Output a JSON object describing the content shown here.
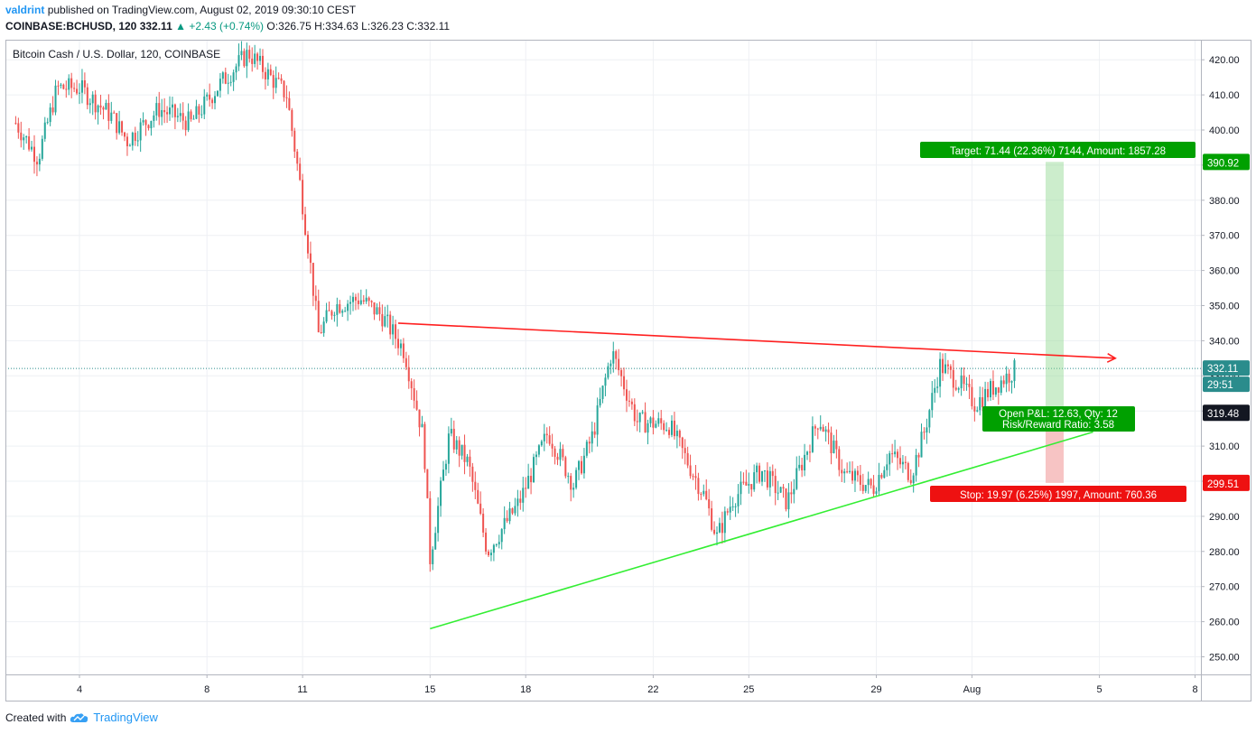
{
  "header": {
    "author": "valdrint",
    "published_text": "published on TradingView.com, August 02, 2019 09:30:10 CEST",
    "symbol": "COINBASE:BCHUSD, 120",
    "last": "332.11",
    "change": "+2.43 (+0.74%)",
    "open_label": "O:",
    "open": "326.75",
    "high_label": "H:",
    "high": "334.63",
    "low_label": "L:",
    "low": "326.23",
    "close_label": "C:",
    "close": "332.11"
  },
  "footer": {
    "created_with": "Created with",
    "brand": "TradingView"
  },
  "colors": {
    "up": "#26a69a",
    "down": "#ef5350",
    "grid": "#eef0f4",
    "resistance": "#ff2020",
    "support": "#33ee33",
    "target": "#00a000",
    "stop": "#ee1111",
    "current": "#2a8c8c",
    "neutral": "#131722"
  },
  "chart_data": {
    "type": "candlestick",
    "title": "Bitcoin Cash / U.S. Dollar, 120, COINBASE",
    "y_ticks": [
      "250.00",
      "260.00",
      "270.00",
      "280.00",
      "290.00",
      "300.00",
      "310.00",
      "320.00",
      "330.00",
      "340.00",
      "350.00",
      "360.00",
      "370.00",
      "380.00",
      "390.00",
      "400.00",
      "410.00",
      "420.00"
    ],
    "x_ticks": [
      "4",
      "8",
      "11",
      "15",
      "18",
      "22",
      "25",
      "29",
      "Aug",
      "5",
      "8"
    ],
    "ylim": [
      246.9,
      426
    ],
    "grid": true,
    "price_path": [
      {
        "day": 2.0,
        "price": 402
      },
      {
        "day": 2.7,
        "price": 392
      },
      {
        "day": 3.3,
        "price": 412
      },
      {
        "day": 4.0,
        "price": 412
      },
      {
        "day": 5.0,
        "price": 404
      },
      {
        "day": 5.5,
        "price": 397
      },
      {
        "day": 6.5,
        "price": 406
      },
      {
        "day": 7.5,
        "price": 402
      },
      {
        "day": 8.4,
        "price": 413
      },
      {
        "day": 9.3,
        "price": 422
      },
      {
        "day": 10.5,
        "price": 410
      },
      {
        "day": 10.9,
        "price": 386
      },
      {
        "day": 11.2,
        "price": 365
      },
      {
        "day": 11.5,
        "price": 342
      },
      {
        "day": 12.0,
        "price": 350
      },
      {
        "day": 12.8,
        "price": 352
      },
      {
        "day": 13.5,
        "price": 347
      },
      {
        "day": 14.2,
        "price": 337
      },
      {
        "day": 14.8,
        "price": 312
      },
      {
        "day": 15.0,
        "price": 278
      },
      {
        "day": 15.6,
        "price": 313
      },
      {
        "day": 16.2,
        "price": 305
      },
      {
        "day": 16.8,
        "price": 280
      },
      {
        "day": 17.8,
        "price": 294
      },
      {
        "day": 18.7,
        "price": 314
      },
      {
        "day": 19.5,
        "price": 299
      },
      {
        "day": 20.1,
        "price": 313
      },
      {
        "day": 20.7,
        "price": 337
      },
      {
        "day": 21.5,
        "price": 317
      },
      {
        "day": 22.5,
        "price": 316
      },
      {
        "day": 23.6,
        "price": 296
      },
      {
        "day": 24.0,
        "price": 284
      },
      {
        "day": 24.5,
        "price": 295
      },
      {
        "day": 25.4,
        "price": 303
      },
      {
        "day": 26.2,
        "price": 294
      },
      {
        "day": 27.2,
        "price": 318
      },
      {
        "day": 28.0,
        "price": 302
      },
      {
        "day": 28.9,
        "price": 298
      },
      {
        "day": 29.4,
        "price": 308
      },
      {
        "day": 30.1,
        "price": 302
      },
      {
        "day": 30.5,
        "price": 314
      },
      {
        "day": 31.0,
        "price": 333
      },
      {
        "day": 31.6,
        "price": 328
      },
      {
        "day": 32.1,
        "price": 322
      },
      {
        "day": 32.7,
        "price": 327
      },
      {
        "day": 33.4,
        "price": 332.11
      }
    ],
    "trendlines": [
      {
        "name": "resistance",
        "from": {
          "day": 14.0,
          "price": 345
        },
        "to": {
          "day": 36.5,
          "price": 335
        },
        "arrow": true
      },
      {
        "name": "support",
        "from": {
          "day": 15.0,
          "price": 258
        },
        "to": {
          "day": 35.8,
          "price": 314
        },
        "arrow": false
      }
    ],
    "position": {
      "type": "long",
      "entry": 319.48,
      "target_price": 390.92,
      "stop_price": 299.51,
      "current_price": 332.11,
      "countdown": "29:51",
      "target_label": "Target: 71.44 (22.36%) 7144, Amount: 1857.28",
      "stop_label": "Stop: 19.97 (6.25%) 1997, Amount: 760.36",
      "pnl_label": "Open P&L: 12.63, Qty: 12",
      "rr_label": "Risk/Reward Ratio: 3.58",
      "target_axis_label": "390.92",
      "stop_axis_label": "299.51",
      "entry_axis_label": "319.48",
      "current_axis_label": "332.11"
    }
  }
}
